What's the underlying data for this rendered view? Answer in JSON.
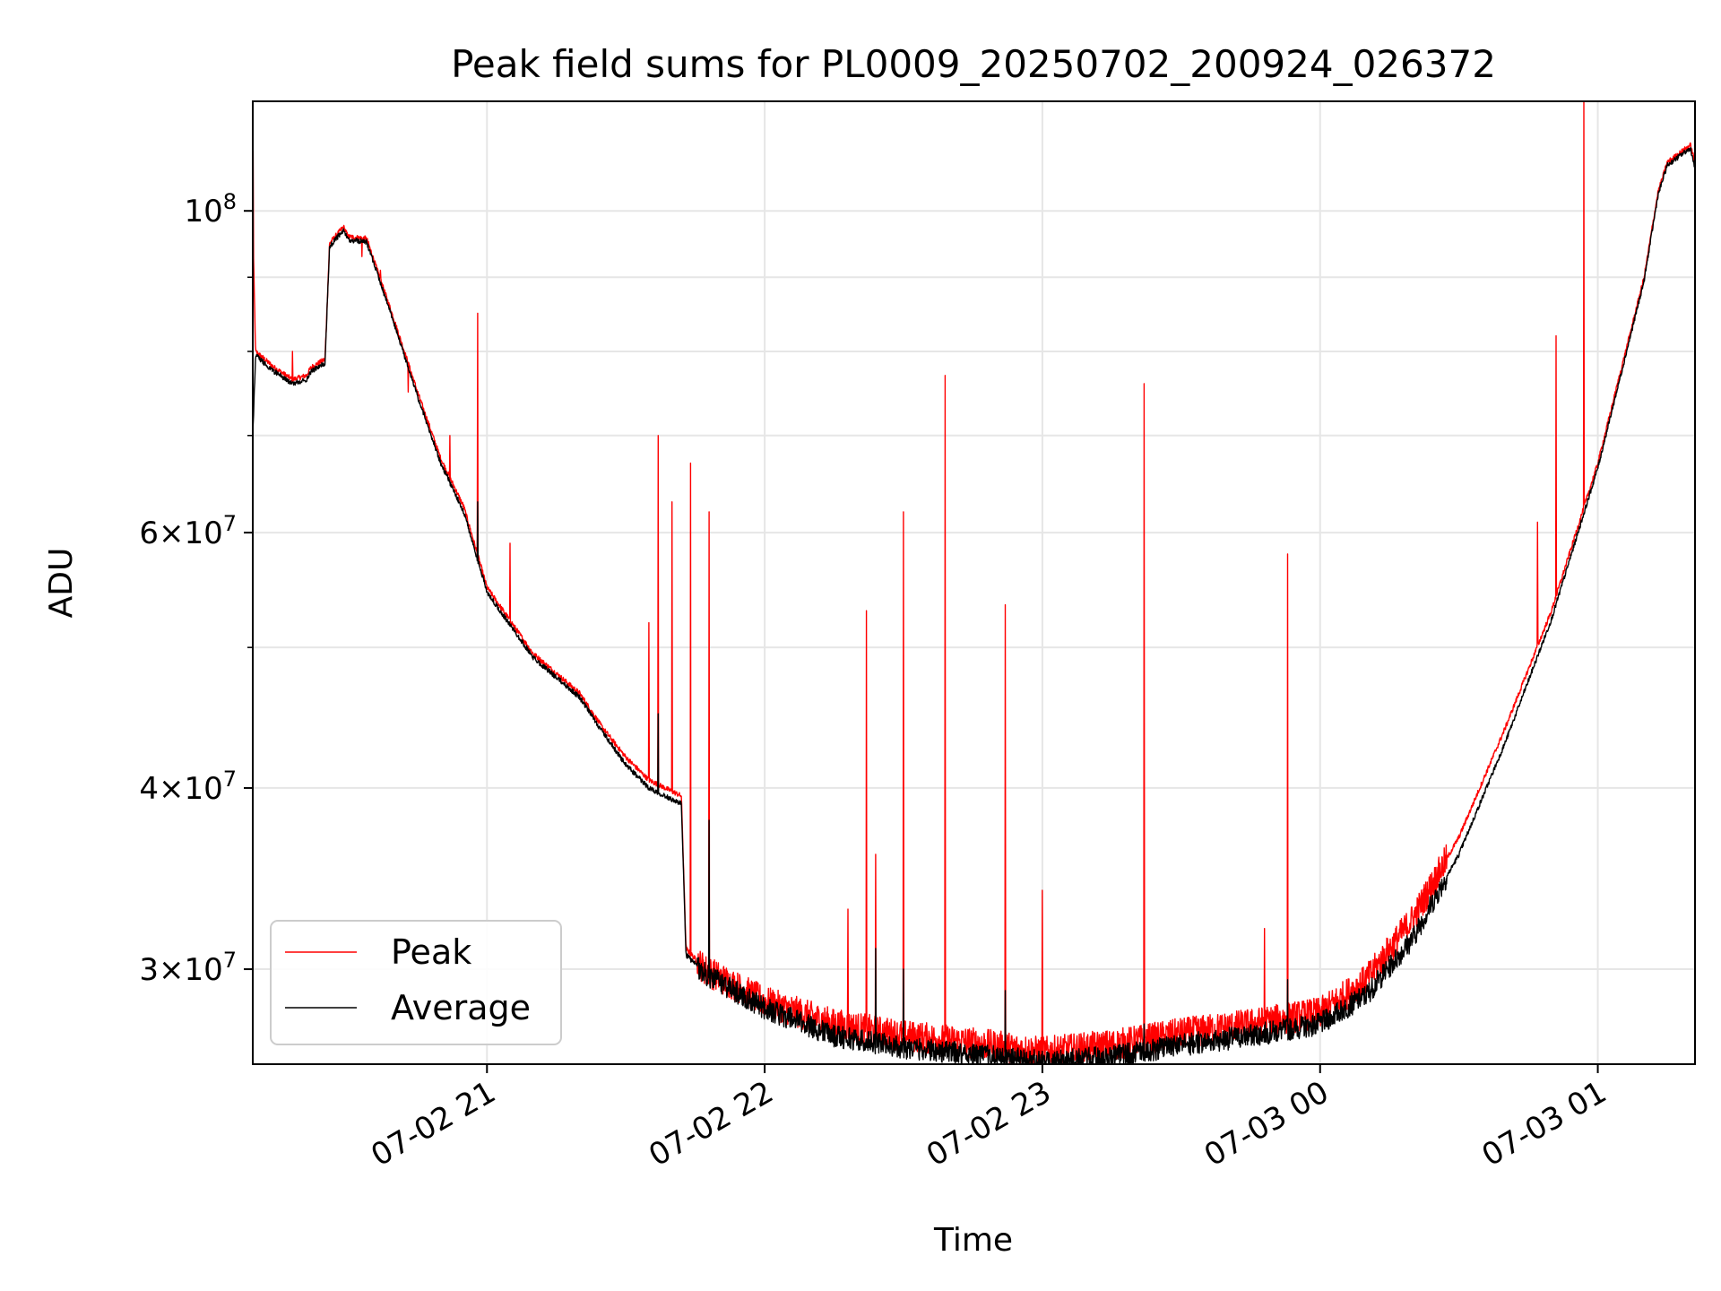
{
  "chart_data": {
    "type": "line",
    "title": "Peak field sums for PL0009_20250702_200924_026372",
    "xlabel": "Time",
    "ylabel": "ADU",
    "y_scale": "log",
    "x_range": [
      "2025-07-02 20:09:24",
      "2025-07-03 01:21:00"
    ],
    "ylim": [
      25800000,
      119000000
    ],
    "x_ticks": [
      {
        "time": "2025-07-02 21:00",
        "label": "07-02 21"
      },
      {
        "time": "2025-07-02 22:00",
        "label": "07-02 22"
      },
      {
        "time": "2025-07-02 23:00",
        "label": "07-02 23"
      },
      {
        "time": "2025-07-03 00:00",
        "label": "07-03 00"
      },
      {
        "time": "2025-07-03 01:00",
        "label": "07-03 01"
      }
    ],
    "y_major_ticks": [
      {
        "value": 100000000,
        "base": "10",
        "exp": "8",
        "mult": ""
      },
      {
        "value": 60000000,
        "base": "10",
        "exp": "7",
        "mult": "6"
      },
      {
        "value": 40000000,
        "base": "10",
        "exp": "7",
        "mult": "4"
      },
      {
        "value": 30000000,
        "base": "10",
        "exp": "7",
        "mult": "3"
      }
    ],
    "y_minor_ticks": [
      90000000,
      80000000,
      70000000,
      50000000
    ],
    "grid": true,
    "legend_position": "lower-left",
    "series": [
      {
        "name": "Peak",
        "color": "#ff0000",
        "role": "peak",
        "baseline": [
          [
            "2025-07-02 20:09:24",
            98000000
          ],
          [
            "2025-07-02 20:10:00",
            80000000
          ],
          [
            "2025-07-02 20:14:00",
            78000000
          ],
          [
            "2025-07-02 20:18:00",
            76500000
          ],
          [
            "2025-07-02 20:21:00",
            77000000
          ],
          [
            "2025-07-02 20:22:00",
            78000000
          ],
          [
            "2025-07-02 20:25:00",
            79000000
          ],
          [
            "2025-07-02 20:26:00",
            95000000
          ],
          [
            "2025-07-02 20:29:00",
            97500000
          ],
          [
            "2025-07-02 20:30:00",
            96000000
          ],
          [
            "2025-07-02 20:34:00",
            95700000
          ],
          [
            "2025-07-02 20:40:00",
            84000000
          ],
          [
            "2025-07-02 20:45:00",
            75000000
          ],
          [
            "2025-07-02 20:50:00",
            67500000
          ],
          [
            "2025-07-02 20:55:00",
            62500000
          ],
          [
            "2025-07-02 21:00:00",
            55000000
          ],
          [
            "2025-07-02 21:10:00",
            49500000
          ],
          [
            "2025-07-02 21:20:00",
            46500000
          ],
          [
            "2025-07-02 21:25:00",
            44000000
          ],
          [
            "2025-07-02 21:30:00",
            42000000
          ],
          [
            "2025-07-02 21:35:00",
            40500000
          ],
          [
            "2025-07-02 21:42:00",
            39500000
          ],
          [
            "2025-07-02 21:43:00",
            31000000
          ],
          [
            "2025-07-02 21:47:00",
            30000000
          ],
          [
            "2025-07-02 22:00:00",
            28500000
          ],
          [
            "2025-07-02 22:15:00",
            27500000
          ],
          [
            "2025-07-02 22:30:00",
            27000000
          ],
          [
            "2025-07-02 22:45:00",
            26700000
          ],
          [
            "2025-07-02 23:00:00",
            26300000
          ],
          [
            "2025-07-02 23:15:00",
            26600000
          ],
          [
            "2025-07-02 23:30:00",
            27100000
          ],
          [
            "2025-07-02 23:45:00",
            27500000
          ],
          [
            "2025-07-03 00:00:00",
            28000000
          ],
          [
            "2025-07-03 00:10:00",
            29500000
          ],
          [
            "2025-07-03 00:20:00",
            32500000
          ],
          [
            "2025-07-03 00:30:00",
            37000000
          ],
          [
            "2025-07-03 00:40:00",
            44000000
          ],
          [
            "2025-07-03 00:50:00",
            53000000
          ],
          [
            "2025-07-03 01:00:00",
            67000000
          ],
          [
            "2025-07-03 01:10:00",
            90000000
          ],
          [
            "2025-07-03 01:13:00",
            103000000
          ],
          [
            "2025-07-03 01:15:00",
            108000000
          ],
          [
            "2025-07-03 01:20:00",
            111000000
          ],
          [
            "2025-07-03 01:21:00",
            108000000
          ]
        ],
        "spikes": [
          [
            "2025-07-02 20:09:30",
            110000000
          ],
          [
            "2025-07-02 20:18:00",
            80000000
          ],
          [
            "2025-07-02 20:33:00",
            93000000
          ],
          [
            "2025-07-02 20:37:00",
            91000000
          ],
          [
            "2025-07-02 20:43:00",
            75000000
          ],
          [
            "2025-07-02 20:52:00",
            70000000
          ],
          [
            "2025-07-02 20:58:00",
            85000000
          ],
          [
            "2025-07-02 21:05:00",
            59000000
          ],
          [
            "2025-07-02 21:35:00",
            52000000
          ],
          [
            "2025-07-02 21:37:00",
            70000000
          ],
          [
            "2025-07-02 21:40:00",
            63000000
          ],
          [
            "2025-07-02 21:44:00",
            67000000
          ],
          [
            "2025-07-02 21:48:00",
            62000000
          ],
          [
            "2025-07-02 22:18:00",
            33000000
          ],
          [
            "2025-07-02 22:22:00",
            53000000
          ],
          [
            "2025-07-02 22:24:00",
            36000000
          ],
          [
            "2025-07-02 22:30:00",
            62000000
          ],
          [
            "2025-07-02 22:39:00",
            77000000
          ],
          [
            "2025-07-02 22:52:00",
            53500000
          ],
          [
            "2025-07-02 23:00:00",
            34000000
          ],
          [
            "2025-07-02 23:22:00",
            76000000
          ],
          [
            "2025-07-02 23:48:00",
            32000000
          ],
          [
            "2025-07-02 23:53:00",
            58000000
          ],
          [
            "2025-07-03 00:47:00",
            61000000
          ],
          [
            "2025-07-03 00:51:00",
            82000000
          ],
          [
            "2025-07-03 00:57:00",
            119000000
          ]
        ]
      },
      {
        "name": "Average",
        "color": "#000000",
        "role": "average",
        "baseline": [
          [
            "2025-07-02 20:09:24",
            70000000
          ],
          [
            "2025-07-02 20:10:00",
            79500000
          ],
          [
            "2025-07-02 20:14:00",
            77500000
          ],
          [
            "2025-07-02 20:18:00",
            76000000
          ],
          [
            "2025-07-02 20:21:00",
            76500000
          ],
          [
            "2025-07-02 20:22:00",
            77500000
          ],
          [
            "2025-07-02 20:25:00",
            78500000
          ],
          [
            "2025-07-02 20:26:00",
            94500000
          ],
          [
            "2025-07-02 20:29:00",
            97000000
          ],
          [
            "2025-07-02 20:30:00",
            95500000
          ],
          [
            "2025-07-02 20:34:00",
            95200000
          ],
          [
            "2025-07-02 20:40:00",
            83500000
          ],
          [
            "2025-07-02 20:45:00",
            74500000
          ],
          [
            "2025-07-02 20:50:00",
            67000000
          ],
          [
            "2025-07-02 20:55:00",
            62000000
          ],
          [
            "2025-07-02 21:00:00",
            54600000
          ],
          [
            "2025-07-02 21:10:00",
            49200000
          ],
          [
            "2025-07-02 21:20:00",
            46200000
          ],
          [
            "2025-07-02 21:25:00",
            43700000
          ],
          [
            "2025-07-02 21:30:00",
            41500000
          ],
          [
            "2025-07-02 21:35:00",
            40000000
          ],
          [
            "2025-07-02 21:42:00",
            39000000
          ],
          [
            "2025-07-02 21:43:00",
            30700000
          ],
          [
            "2025-07-02 21:47:00",
            29800000
          ],
          [
            "2025-07-02 22:00:00",
            28200000
          ],
          [
            "2025-07-02 22:15:00",
            27000000
          ],
          [
            "2025-07-02 22:30:00",
            26500000
          ],
          [
            "2025-07-02 22:45:00",
            26200000
          ],
          [
            "2025-07-02 23:00:00",
            25900000
          ],
          [
            "2025-07-02 23:15:00",
            26100000
          ],
          [
            "2025-07-02 23:30:00",
            26600000
          ],
          [
            "2025-07-02 23:45:00",
            27000000
          ],
          [
            "2025-07-03 00:00:00",
            27500000
          ],
          [
            "2025-07-03 00:10:00",
            28800000
          ],
          [
            "2025-07-03 00:20:00",
            31500000
          ],
          [
            "2025-07-03 00:30:00",
            36000000
          ],
          [
            "2025-07-03 00:40:00",
            43000000
          ],
          [
            "2025-07-03 00:50:00",
            52300000
          ],
          [
            "2025-07-03 01:00:00",
            66500000
          ],
          [
            "2025-07-03 01:10:00",
            89500000
          ],
          [
            "2025-07-03 01:13:00",
            102500000
          ],
          [
            "2025-07-03 01:15:00",
            107500000
          ],
          [
            "2025-07-03 01:20:00",
            110500000
          ],
          [
            "2025-07-03 01:21:00",
            107000000
          ]
        ],
        "spikes": [
          [
            "2025-07-02 20:58:00",
            63000000
          ],
          [
            "2025-07-02 21:37:00",
            45000000
          ],
          [
            "2025-07-02 21:48:00",
            38000000
          ],
          [
            "2025-07-02 22:24:00",
            31000000
          ],
          [
            "2025-07-02 22:30:00",
            30000000
          ],
          [
            "2025-07-02 22:52:00",
            29000000
          ],
          [
            "2025-07-02 23:22:00",
            27500000
          ],
          [
            "2025-07-02 23:53:00",
            29500000
          ]
        ]
      }
    ]
  }
}
